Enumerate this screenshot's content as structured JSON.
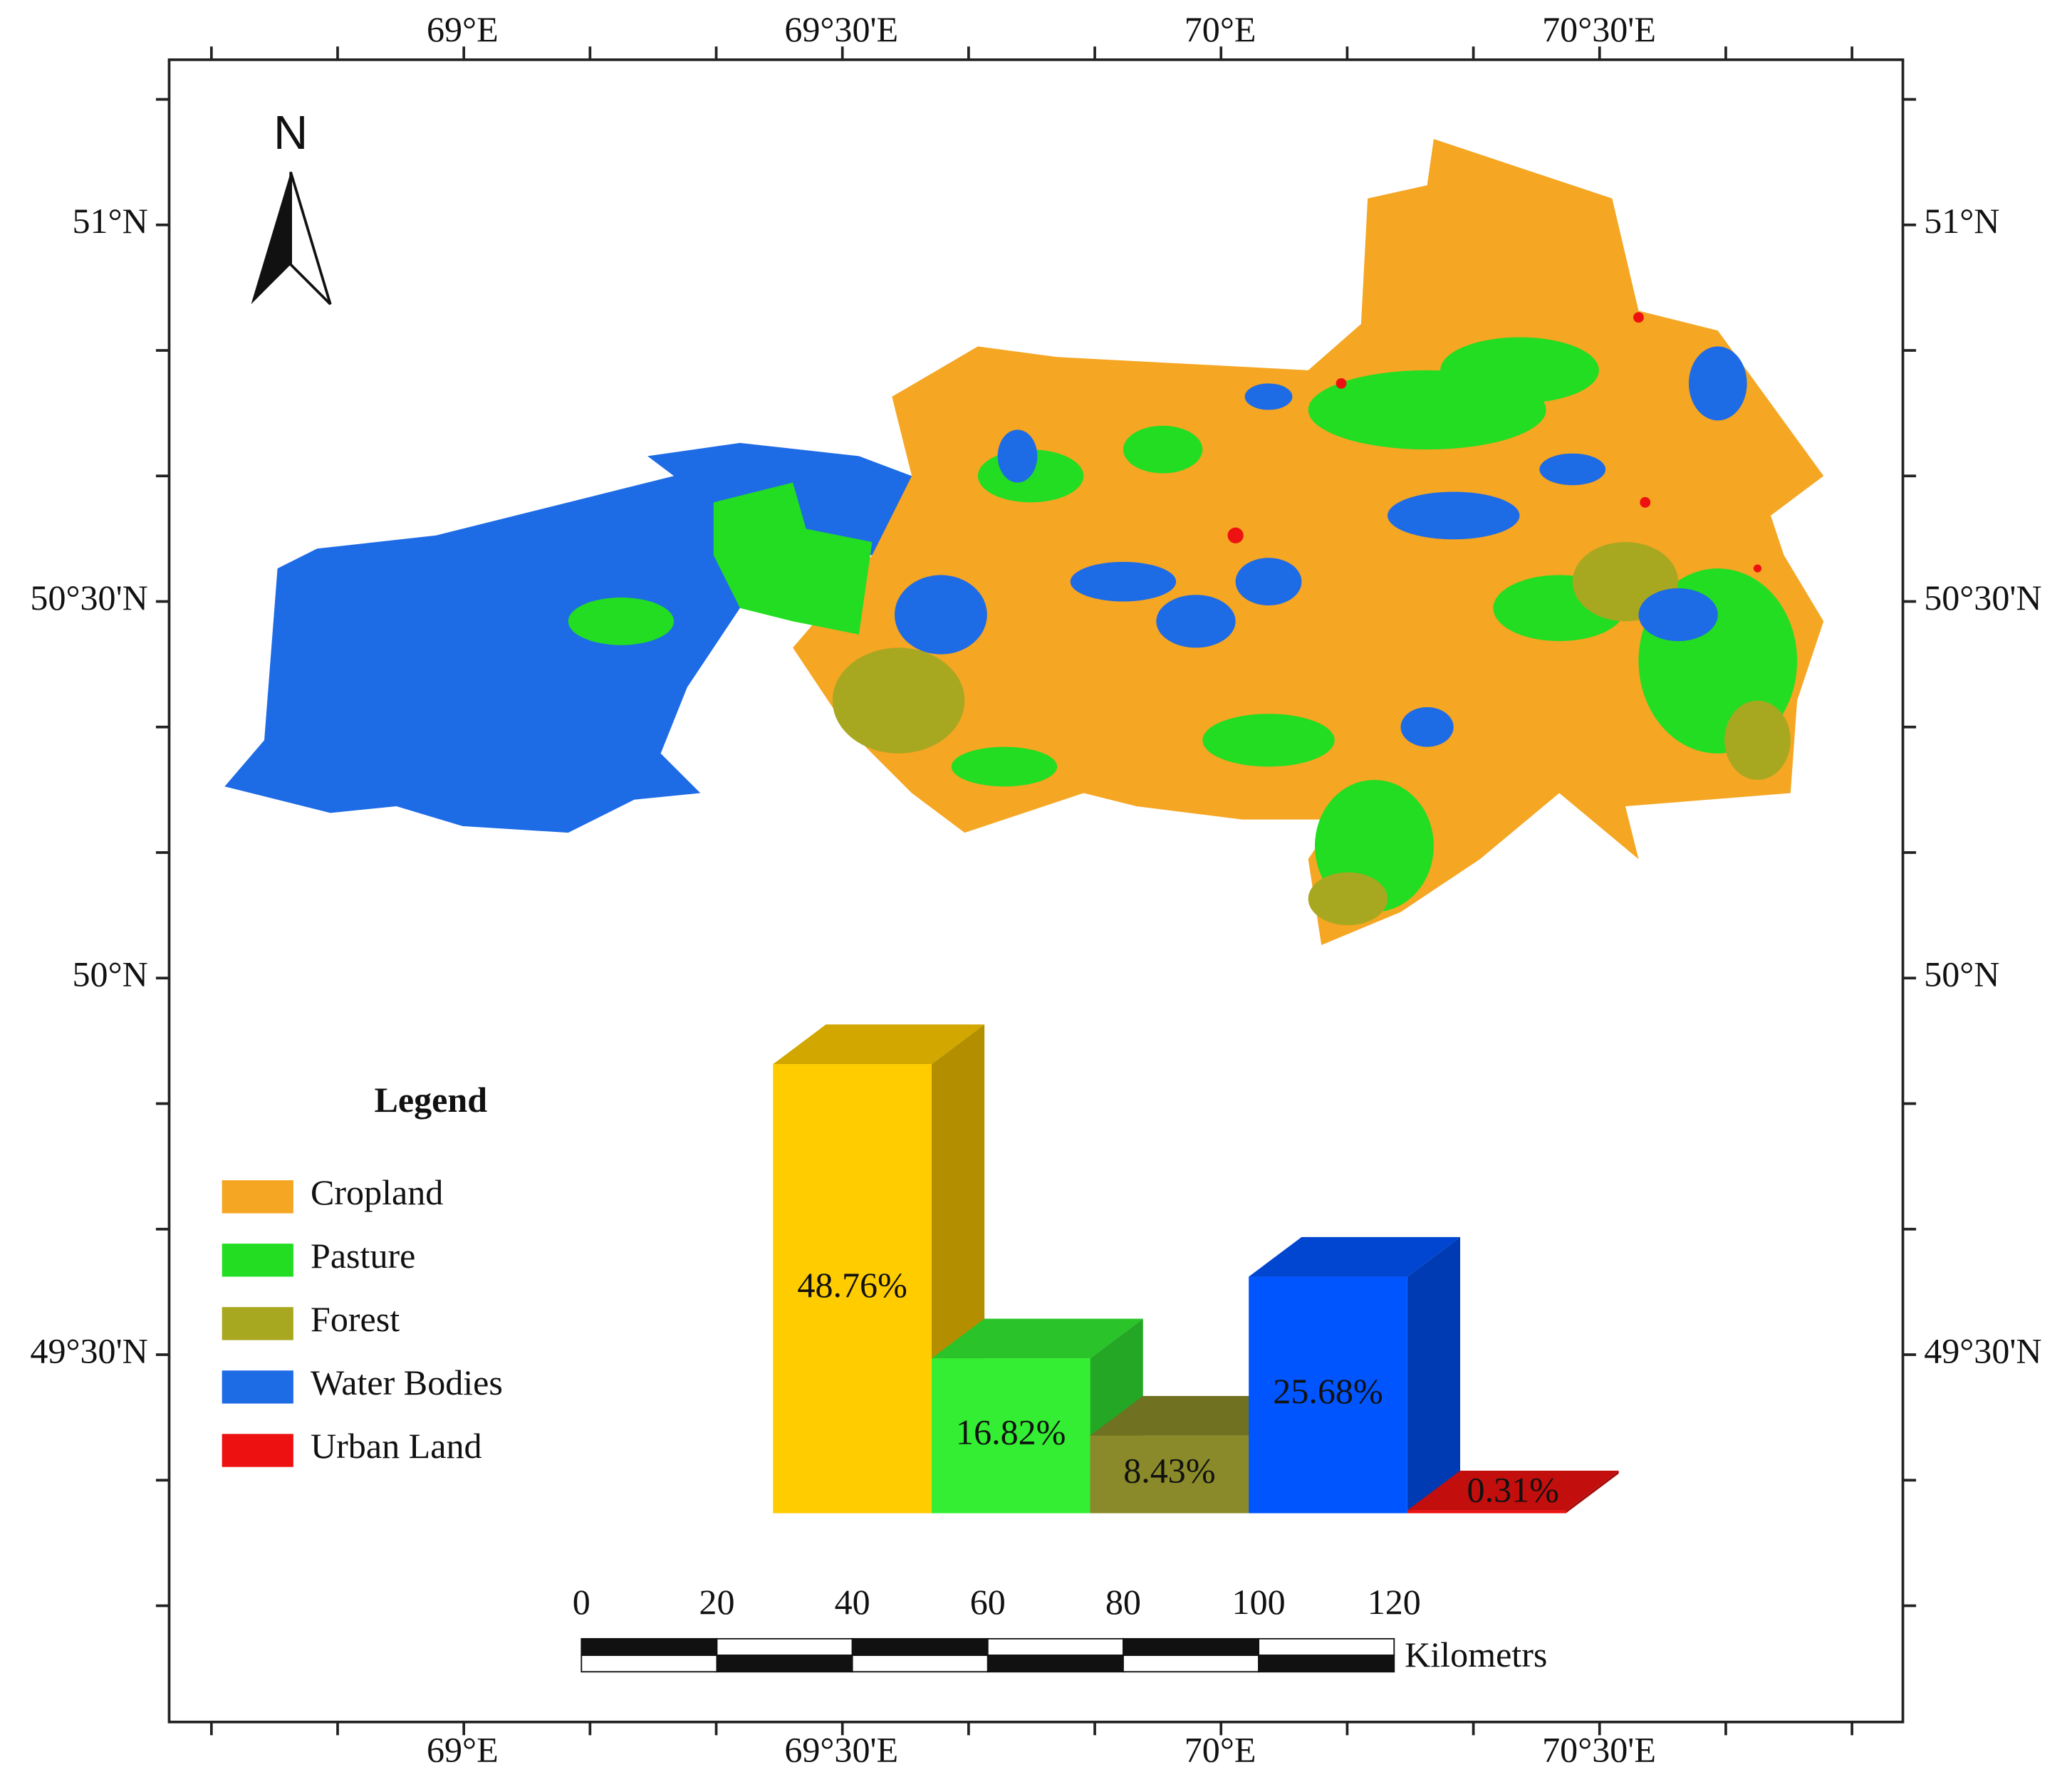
{
  "map": {
    "north_label": "N",
    "lon_labels": [
      "69°E",
      "69°30'E",
      "70°E",
      "70°30'E"
    ],
    "lat_labels": [
      "51°N",
      "50°30'N",
      "50°N",
      "49°30'N"
    ]
  },
  "legend": {
    "title": "Legend"
  },
  "chart_data": {
    "type": "bar",
    "categories": [
      "Cropland",
      "Pasture",
      "Forest",
      "Water Bodies",
      "Urban Land"
    ],
    "colors": [
      "#f5a623",
      "#22dd22",
      "#a8a820",
      "#1e6be6",
      "#ee1111"
    ],
    "bar_colors": [
      "#ffcc00",
      "#33ee33",
      "#8a8a2a",
      "#0055ff",
      "#ee1111"
    ],
    "values": [
      48.76,
      16.82,
      8.43,
      25.68,
      0.31
    ],
    "value_labels": [
      "48.76%",
      "16.82%",
      "8.43%",
      "25.68%",
      "0.31%"
    ]
  },
  "scale_bar": {
    "ticks": [
      0,
      20,
      40,
      60,
      80,
      100,
      120
    ],
    "unit": "Kilometrs"
  }
}
